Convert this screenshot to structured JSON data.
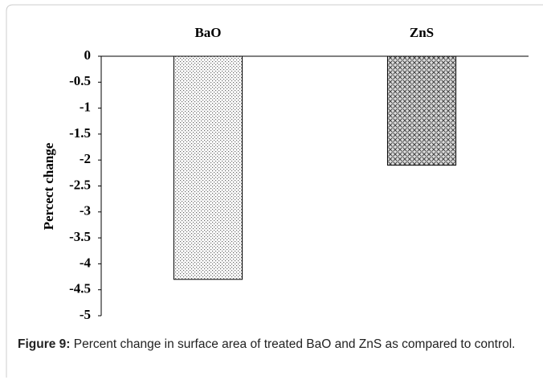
{
  "chart_data": {
    "type": "bar",
    "categories": [
      "BaO",
      "ZnS"
    ],
    "values": [
      -4.3,
      -2.1
    ],
    "y_label": "Percect change",
    "ylim": [
      -5,
      0
    ],
    "yticks": [
      0,
      -0.5,
      -1,
      -1.5,
      -2,
      -2.5,
      -3,
      -3.5,
      -4,
      -4.5,
      -5
    ]
  },
  "caption": {
    "label": "Figure 9:",
    "text": "Percent change in surface area of treated BaO and ZnS as compared to control."
  }
}
